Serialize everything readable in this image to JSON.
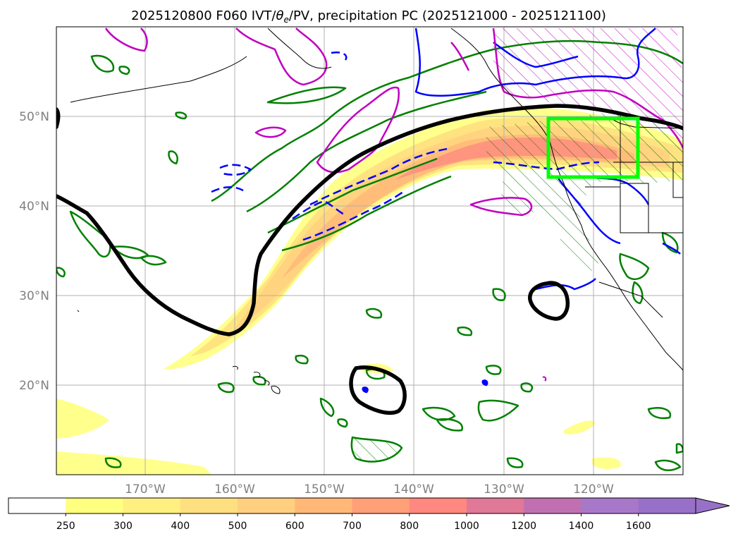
{
  "figure": {
    "title": "2025120800 F060 IVT/θe/PV, precipitation PC (2025121000 - 2025121100)",
    "title_parts": {
      "before": "2025120800 F060 IVT/",
      "theta": "θ",
      "sub": "e",
      "after": "/PV, precipitation PC (2025121000 - 2025121100)"
    }
  },
  "map": {
    "projection": "PlateCarree",
    "lon_range": [
      -180,
      -110
    ],
    "lat_range": [
      10,
      60
    ],
    "lon_ticks": [
      "170°W",
      "160°W",
      "150°W",
      "140°W",
      "130°W",
      "120°W"
    ],
    "lat_ticks": [
      "20°N",
      "30°N",
      "40°N",
      "50°N"
    ],
    "grid": true,
    "colors": {
      "coastline": "#000000",
      "green_contours": "#008000",
      "blue_contours": "#0000ff",
      "magenta_contours": "#c000c0",
      "black_contour": "#000000",
      "pc_box": "#00ff00"
    },
    "highlight_box": {
      "lon": [
        -125,
        -115
      ],
      "lat": [
        43,
        49.5
      ]
    }
  },
  "colorbar": {
    "levels": [
      "250",
      "300",
      "400",
      "500",
      "600",
      "700",
      "800",
      "1000",
      "1200",
      "1400",
      "1600"
    ],
    "colors": [
      "#ffffff",
      "#ffff80",
      "#fff080",
      "#ffe080",
      "#ffd080",
      "#ffb878",
      "#ffa078",
      "#ff8880",
      "#e07898",
      "#c070b0",
      "#a878c8",
      "#9870c8"
    ],
    "extend": "max"
  }
}
